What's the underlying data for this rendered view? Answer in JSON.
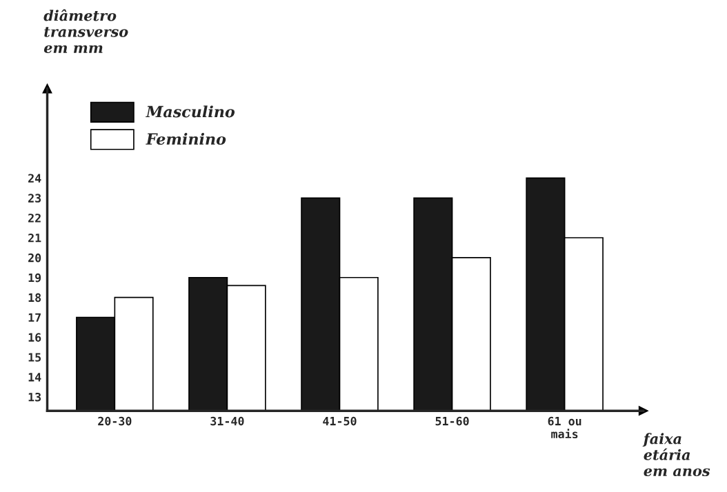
{
  "chart_data": {
    "type": "bar",
    "ylabel": "diâmetro\ntransverso\nem mm",
    "xlabel": "faixa\netária\nem anos",
    "categories": [
      "20-30",
      "31-40",
      "41-50",
      "51-60",
      "61 ou\nmais"
    ],
    "series": [
      {
        "name": "Masculino",
        "color": "#1a1a1a",
        "values": [
          17,
          19,
          23,
          23,
          24
        ]
      },
      {
        "name": "Feminino",
        "color": "#ffffff",
        "values": [
          18,
          18.6,
          19,
          20,
          21
        ]
      }
    ],
    "ylim": [
      12.3,
      28.5
    ],
    "yticks": [
      13,
      14,
      15,
      16,
      17,
      18,
      19,
      20,
      21,
      22,
      23,
      24
    ],
    "grid": false,
    "legend": "top left"
  }
}
